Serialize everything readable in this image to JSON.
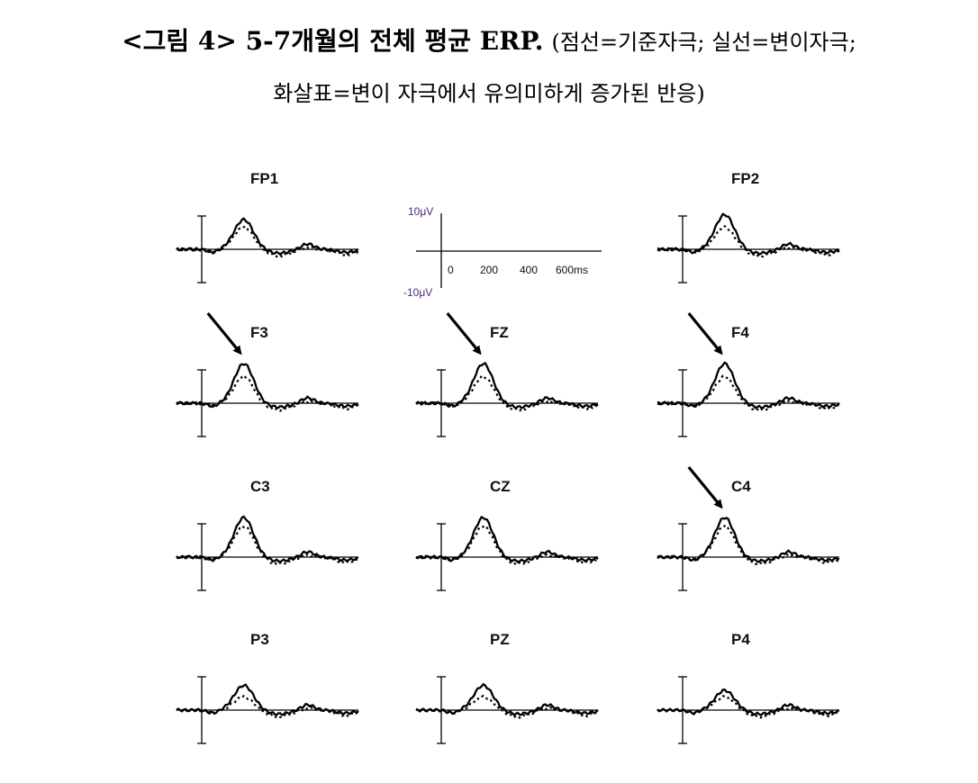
{
  "caption": {
    "label": "<그림 4> 5-7개월의 전체 평균 ERP.",
    "note_line1": "(점선=기준자극; 실선=변이자극;",
    "note_line2": "화살표=변이 자극에서 유의미하게 증가된 반응)"
  },
  "scale": {
    "y_top": "10μV",
    "y_bottom": "-10μV",
    "x_ticks": [
      "0",
      "200",
      "400",
      "600ms"
    ]
  },
  "electrodes": [
    {
      "name": "FP1",
      "row": 0,
      "col": 0,
      "arrow": false,
      "peak_std": 5,
      "peak_dev": 6
    },
    {
      "name": "FP2",
      "row": 0,
      "col": 2,
      "arrow": false,
      "peak_std": 5,
      "peak_dev": 7
    },
    {
      "name": "F3",
      "row": 1,
      "col": 0,
      "arrow": true,
      "peak_std": 6,
      "peak_dev": 8
    },
    {
      "name": "FZ",
      "row": 1,
      "col": 1,
      "arrow": true,
      "peak_std": 6,
      "peak_dev": 8
    },
    {
      "name": "F4",
      "row": 1,
      "col": 2,
      "arrow": true,
      "peak_std": 6,
      "peak_dev": 8
    },
    {
      "name": "C3",
      "row": 2,
      "col": 0,
      "arrow": false,
      "peak_std": 7,
      "peak_dev": 8
    },
    {
      "name": "CZ",
      "row": 2,
      "col": 1,
      "arrow": false,
      "peak_std": 7,
      "peak_dev": 8
    },
    {
      "name": "C4",
      "row": 2,
      "col": 2,
      "arrow": true,
      "peak_std": 7,
      "peak_dev": 8
    },
    {
      "name": "P3",
      "row": 3,
      "col": 0,
      "arrow": false,
      "peak_std": 3,
      "peak_dev": 5
    },
    {
      "name": "PZ",
      "row": 3,
      "col": 1,
      "arrow": false,
      "peak_std": 3,
      "peak_dev": 5
    },
    {
      "name": "P4",
      "row": 3,
      "col": 2,
      "arrow": false,
      "peak_std": 3,
      "peak_dev": 4
    }
  ]
}
